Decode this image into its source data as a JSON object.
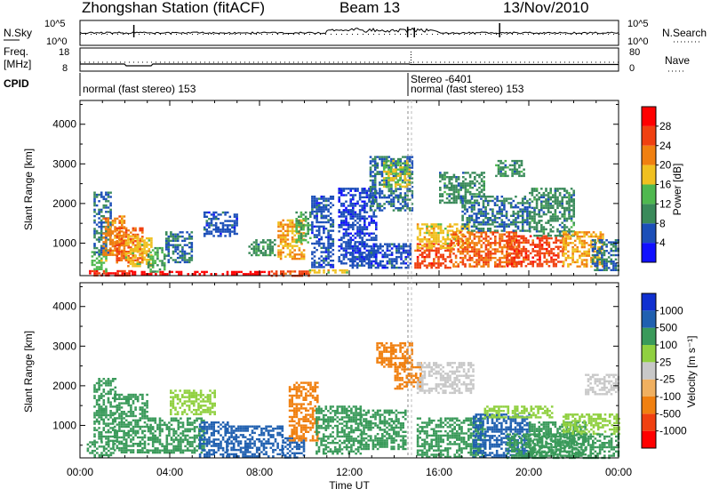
{
  "header": {
    "station": "Zhongshan Station (fitACF)",
    "beam": "Beam 13",
    "date": "13/Nov/2010"
  },
  "strips": {
    "nsky_label": "N.Sky",
    "nsearch_label": "N.Search",
    "nsky_ticks": [
      "10^5",
      "10^0"
    ],
    "nsearch_ticks": [
      "10^5",
      "10^0"
    ],
    "freq_label_line1": "Freq.",
    "freq_label_line2": "[MHz]",
    "freq_ticks": [
      "18",
      "8"
    ],
    "nave_label": "Nave",
    "nave_ticks": [
      "80",
      "0"
    ],
    "cpid_label": "CPID",
    "cpid_segments": [
      {
        "label": "normal (fast stereo) 153",
        "start_hour": 0
      },
      {
        "label": "Stereo -6401",
        "start_hour": 14.75
      },
      {
        "label": "normal (fast stereo) 153",
        "start_hour": 14.75
      }
    ]
  },
  "x_ticks": [
    "00:00",
    "04:00",
    "08:00",
    "12:00",
    "16:00",
    "20:00",
    "00:00"
  ],
  "xlabel": "Time UT",
  "colors": {
    "power": [
      "#1010ff",
      "#1c4fb8",
      "#3a8a5a",
      "#4fb84f",
      "#f0c020",
      "#f08010",
      "#f04010",
      "#ff0000"
    ],
    "velocity": [
      "#ff0000",
      "#f04010",
      "#f08010",
      "#f0b060",
      "#c8c8c8",
      "#90d040",
      "#3a9a5a",
      "#2060b0",
      "#1030d0"
    ]
  },
  "chart_data": [
    {
      "type": "heatmap",
      "title": "",
      "xlabel": "Time UT",
      "ylabel": "Slant Range [km]",
      "x_range_hours": [
        0,
        24
      ],
      "ylim": [
        180,
        4600
      ],
      "y_ticks": [
        1000,
        2000,
        3000,
        4000
      ],
      "colorbar": {
        "label": "Power [dB]",
        "min": 0,
        "max": 32,
        "tick_values": [
          4,
          8,
          12,
          16,
          20,
          24,
          28
        ],
        "tick_labels": [
          "4",
          "8",
          "12",
          "16",
          "20",
          "24",
          "28"
        ]
      },
      "regions": [
        {
          "t0": 0.4,
          "t1": 2.3,
          "r0": 200,
          "r1": 320,
          "value": 28
        },
        {
          "t0": 2.3,
          "t1": 8.5,
          "r0": 200,
          "r1": 300,
          "value": 30
        },
        {
          "t0": 8.5,
          "t1": 10.2,
          "r0": 200,
          "r1": 310,
          "value": 26
        },
        {
          "t0": 10.2,
          "t1": 12.0,
          "r0": 240,
          "r1": 340,
          "value": 18
        },
        {
          "t0": 0.5,
          "t1": 1.2,
          "r0": 300,
          "r1": 800,
          "value": 14
        },
        {
          "t0": 0.6,
          "t1": 1.4,
          "r0": 700,
          "r1": 2300,
          "value": 8
        },
        {
          "t0": 1.0,
          "t1": 2.0,
          "r0": 700,
          "r1": 1700,
          "value": 22
        },
        {
          "t0": 1.6,
          "t1": 2.8,
          "r0": 500,
          "r1": 1400,
          "value": 24
        },
        {
          "t0": 2.0,
          "t1": 3.2,
          "r0": 400,
          "r1": 1200,
          "value": 18
        },
        {
          "t0": 3.0,
          "t1": 3.8,
          "r0": 300,
          "r1": 900,
          "value": 12
        },
        {
          "t0": 3.8,
          "t1": 5.0,
          "r0": 500,
          "r1": 1300,
          "value": 8
        },
        {
          "t0": 5.5,
          "t1": 7.0,
          "r0": 1200,
          "r1": 1800,
          "value": 6
        },
        {
          "t0": 7.5,
          "t1": 8.7,
          "r0": 700,
          "r1": 1100,
          "value": 10
        },
        {
          "t0": 8.8,
          "t1": 10.0,
          "r0": 600,
          "r1": 1600,
          "value": 20
        },
        {
          "t0": 9.6,
          "t1": 10.3,
          "r0": 1000,
          "r1": 1800,
          "value": 12
        },
        {
          "t0": 10.3,
          "t1": 11.3,
          "r0": 400,
          "r1": 2200,
          "value": 6
        },
        {
          "t0": 11.5,
          "t1": 13.2,
          "r0": 500,
          "r1": 2400,
          "value": 5
        },
        {
          "t0": 12.9,
          "t1": 14.8,
          "r0": 1800,
          "r1": 3200,
          "value": 8
        },
        {
          "t0": 13.5,
          "t1": 14.7,
          "r0": 2400,
          "r1": 3100,
          "value": 16
        },
        {
          "t0": 12.0,
          "t1": 14.7,
          "r0": 400,
          "r1": 1000,
          "value": 6
        },
        {
          "t0": 14.9,
          "t1": 16.5,
          "r0": 400,
          "r1": 1000,
          "value": 26
        },
        {
          "t0": 15.0,
          "t1": 17.3,
          "r0": 900,
          "r1": 1500,
          "value": 18
        },
        {
          "t0": 16.0,
          "t1": 18.0,
          "r0": 2000,
          "r1": 2800,
          "value": 10
        },
        {
          "t0": 16.5,
          "t1": 19.5,
          "r0": 400,
          "r1": 1300,
          "value": 24
        },
        {
          "t0": 17.0,
          "t1": 20.0,
          "r0": 1300,
          "r1": 2200,
          "value": 8
        },
        {
          "t0": 19.0,
          "t1": 21.5,
          "r0": 400,
          "r1": 1200,
          "value": 26
        },
        {
          "t0": 20.0,
          "t1": 22.0,
          "r0": 1200,
          "r1": 2400,
          "value": 10
        },
        {
          "t0": 21.5,
          "t1": 23.3,
          "r0": 400,
          "r1": 1300,
          "value": 20
        },
        {
          "t0": 22.8,
          "t1": 24.0,
          "r0": 300,
          "r1": 1100,
          "value": 8
        },
        {
          "t0": 18.5,
          "t1": 19.8,
          "r0": 2700,
          "r1": 3100,
          "value": 10
        }
      ]
    },
    {
      "type": "heatmap",
      "title": "",
      "xlabel": "Time UT",
      "ylabel": "Slant Range [km]",
      "x_range_hours": [
        0,
        24
      ],
      "ylim": [
        180,
        4600
      ],
      "y_ticks": [
        1000,
        2000,
        3000,
        4000
      ],
      "colorbar": {
        "label": "Velocity [m s⁻¹]",
        "tick_labels": [
          "1000",
          "500",
          "100",
          "25",
          "-25",
          "-100",
          "-500",
          "-1000"
        ]
      },
      "regions": [
        {
          "t0": 0.3,
          "t1": 1.5,
          "r0": 200,
          "r1": 600,
          "value": 400
        },
        {
          "t0": 0.6,
          "t1": 1.6,
          "r0": 600,
          "r1": 2200,
          "value": 120
        },
        {
          "t0": 1.5,
          "t1": 3.0,
          "r0": 300,
          "r1": 1800,
          "value": 300
        },
        {
          "t0": 3.0,
          "t1": 5.5,
          "r0": 300,
          "r1": 1200,
          "value": 150
        },
        {
          "t0": 4.0,
          "t1": 6.0,
          "r0": 1300,
          "r1": 1900,
          "value": 60
        },
        {
          "t0": 5.3,
          "t1": 6.6,
          "r0": 200,
          "r1": 1100,
          "value": 800
        },
        {
          "t0": 6.5,
          "t1": 9.0,
          "r0": 200,
          "r1": 1000,
          "value": 900
        },
        {
          "t0": 9.0,
          "t1": 10.0,
          "r0": 200,
          "r1": 700,
          "value": 800
        },
        {
          "t0": 9.3,
          "t1": 10.6,
          "r0": 600,
          "r1": 2100,
          "value": -400
        },
        {
          "t0": 10.5,
          "t1": 12.5,
          "r0": 300,
          "r1": 1500,
          "value": 150
        },
        {
          "t0": 12.5,
          "t1": 14.5,
          "r0": 400,
          "r1": 1400,
          "value": 200
        },
        {
          "t0": 13.2,
          "t1": 14.8,
          "r0": 2500,
          "r1": 3100,
          "value": -400
        },
        {
          "t0": 14.0,
          "t1": 15.2,
          "r0": 1900,
          "r1": 2600,
          "value": -150
        },
        {
          "t0": 15.0,
          "t1": 17.5,
          "r0": 1800,
          "r1": 2600,
          "value": 10
        },
        {
          "t0": 15.0,
          "t1": 18.0,
          "r0": 200,
          "r1": 1200,
          "value": 200
        },
        {
          "t0": 17.5,
          "t1": 20.0,
          "r0": 200,
          "r1": 1300,
          "value": 900
        },
        {
          "t0": 18.0,
          "t1": 21.0,
          "r0": 1200,
          "r1": 1500,
          "value": 60
        },
        {
          "t0": 20.0,
          "t1": 22.5,
          "r0": 200,
          "r1": 1100,
          "value": 200
        },
        {
          "t0": 21.5,
          "t1": 24.0,
          "r0": 800,
          "r1": 1300,
          "value": 60
        },
        {
          "t0": 22.5,
          "t1": 24.0,
          "r0": 1800,
          "r1": 2300,
          "value": 10
        },
        {
          "t0": 19.0,
          "t1": 24.0,
          "r0": 200,
          "r1": 800,
          "value": 120
        }
      ]
    }
  ]
}
